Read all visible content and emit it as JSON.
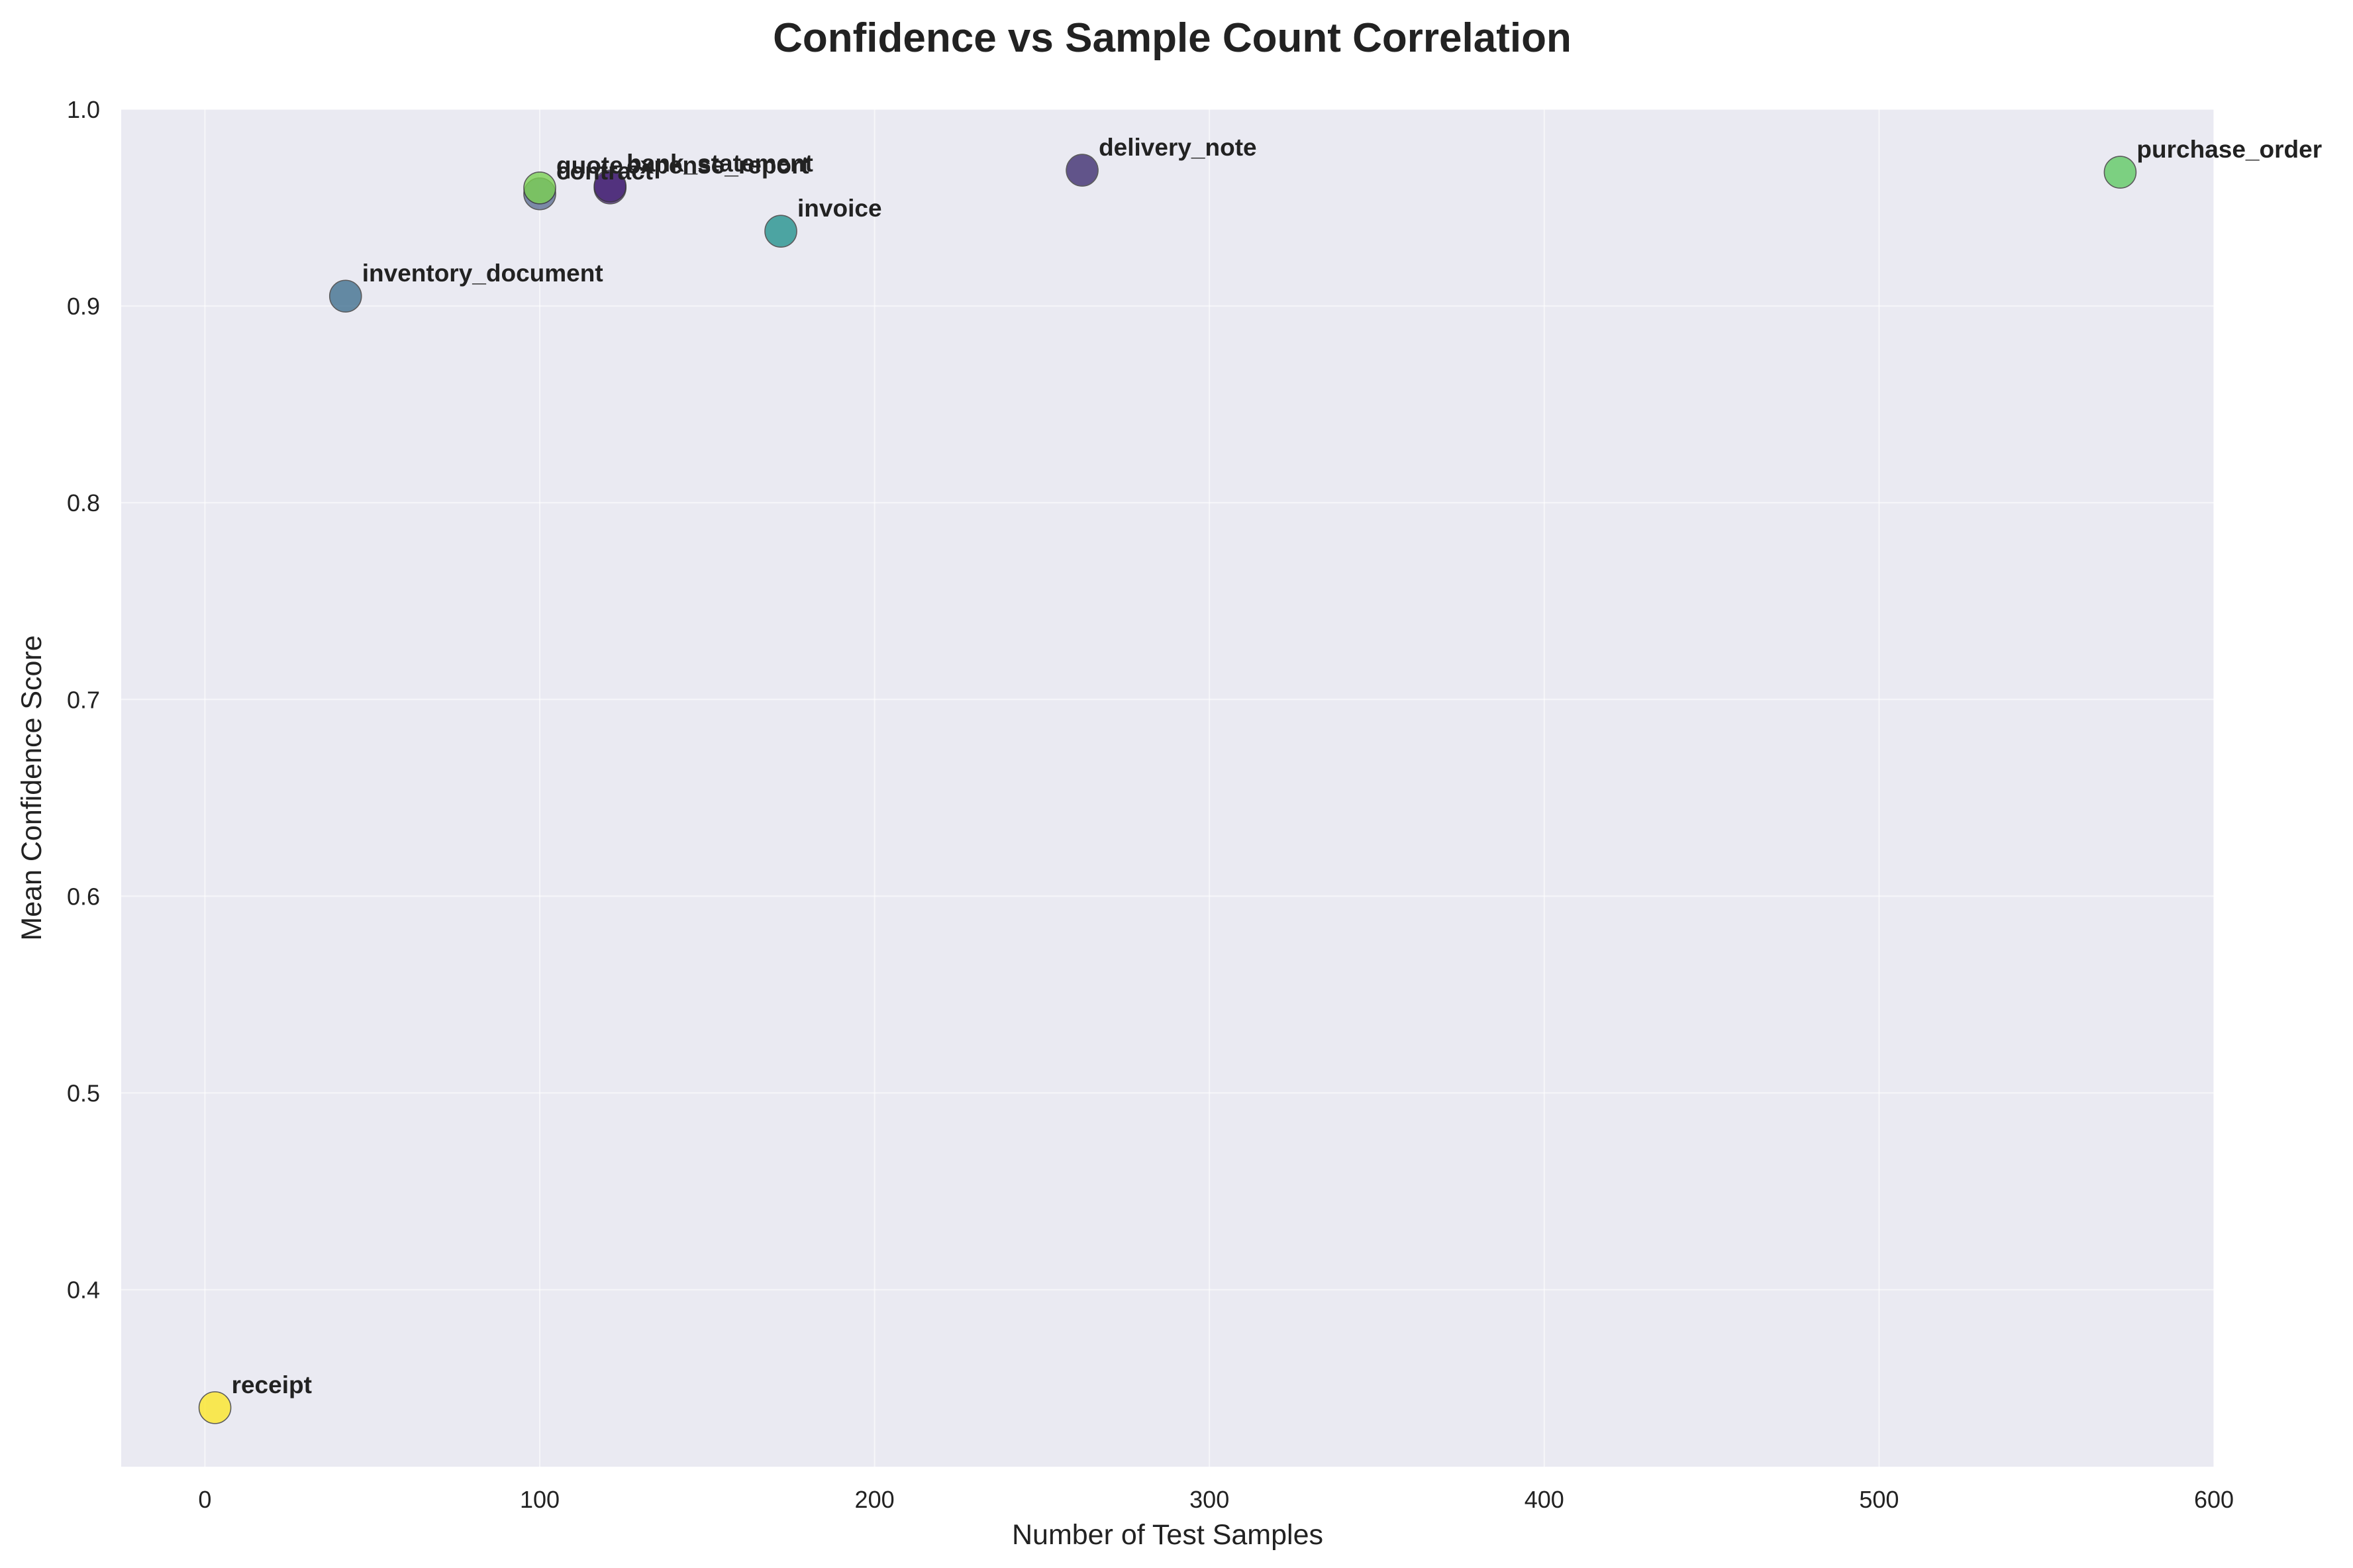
{
  "chart_data": {
    "type": "scatter",
    "title": "Confidence vs Sample Count Correlation",
    "xlabel": "Number of Test Samples",
    "ylabel": "Mean Confidence Score",
    "xlim": [
      -25,
      600
    ],
    "ylim": [
      0.31,
      1.0
    ],
    "xticks": [
      0,
      100,
      200,
      300,
      400,
      500,
      600
    ],
    "yticks": [
      0.4,
      0.5,
      0.6,
      0.7,
      0.8,
      0.9,
      1.0
    ],
    "grid": true,
    "points": [
      {
        "label": "receipt",
        "x": 3,
        "y": 0.34,
        "color": "#fde725"
      },
      {
        "label": "inventory_document",
        "x": 42,
        "y": 0.905,
        "color": "#3e6f8e"
      },
      {
        "label": "contract",
        "x": 100,
        "y": 0.957,
        "color": "#5c6e93"
      },
      {
        "label": "quote",
        "x": 100,
        "y": 0.96,
        "color": "#7ad151"
      },
      {
        "label": "expense_report",
        "x": 121,
        "y": 0.96,
        "color": "#482475"
      },
      {
        "label": "bank_statement",
        "x": 121,
        "y": 0.961,
        "color": "#4c2a7a"
      },
      {
        "label": "invoice",
        "x": 172,
        "y": 0.938,
        "color": "#21918c"
      },
      {
        "label": "delivery_note",
        "x": 262,
        "y": 0.969,
        "color": "#3b2a6d"
      },
      {
        "label": "purchase_order",
        "x": 572,
        "y": 0.968,
        "color": "#5ec962"
      }
    ]
  }
}
